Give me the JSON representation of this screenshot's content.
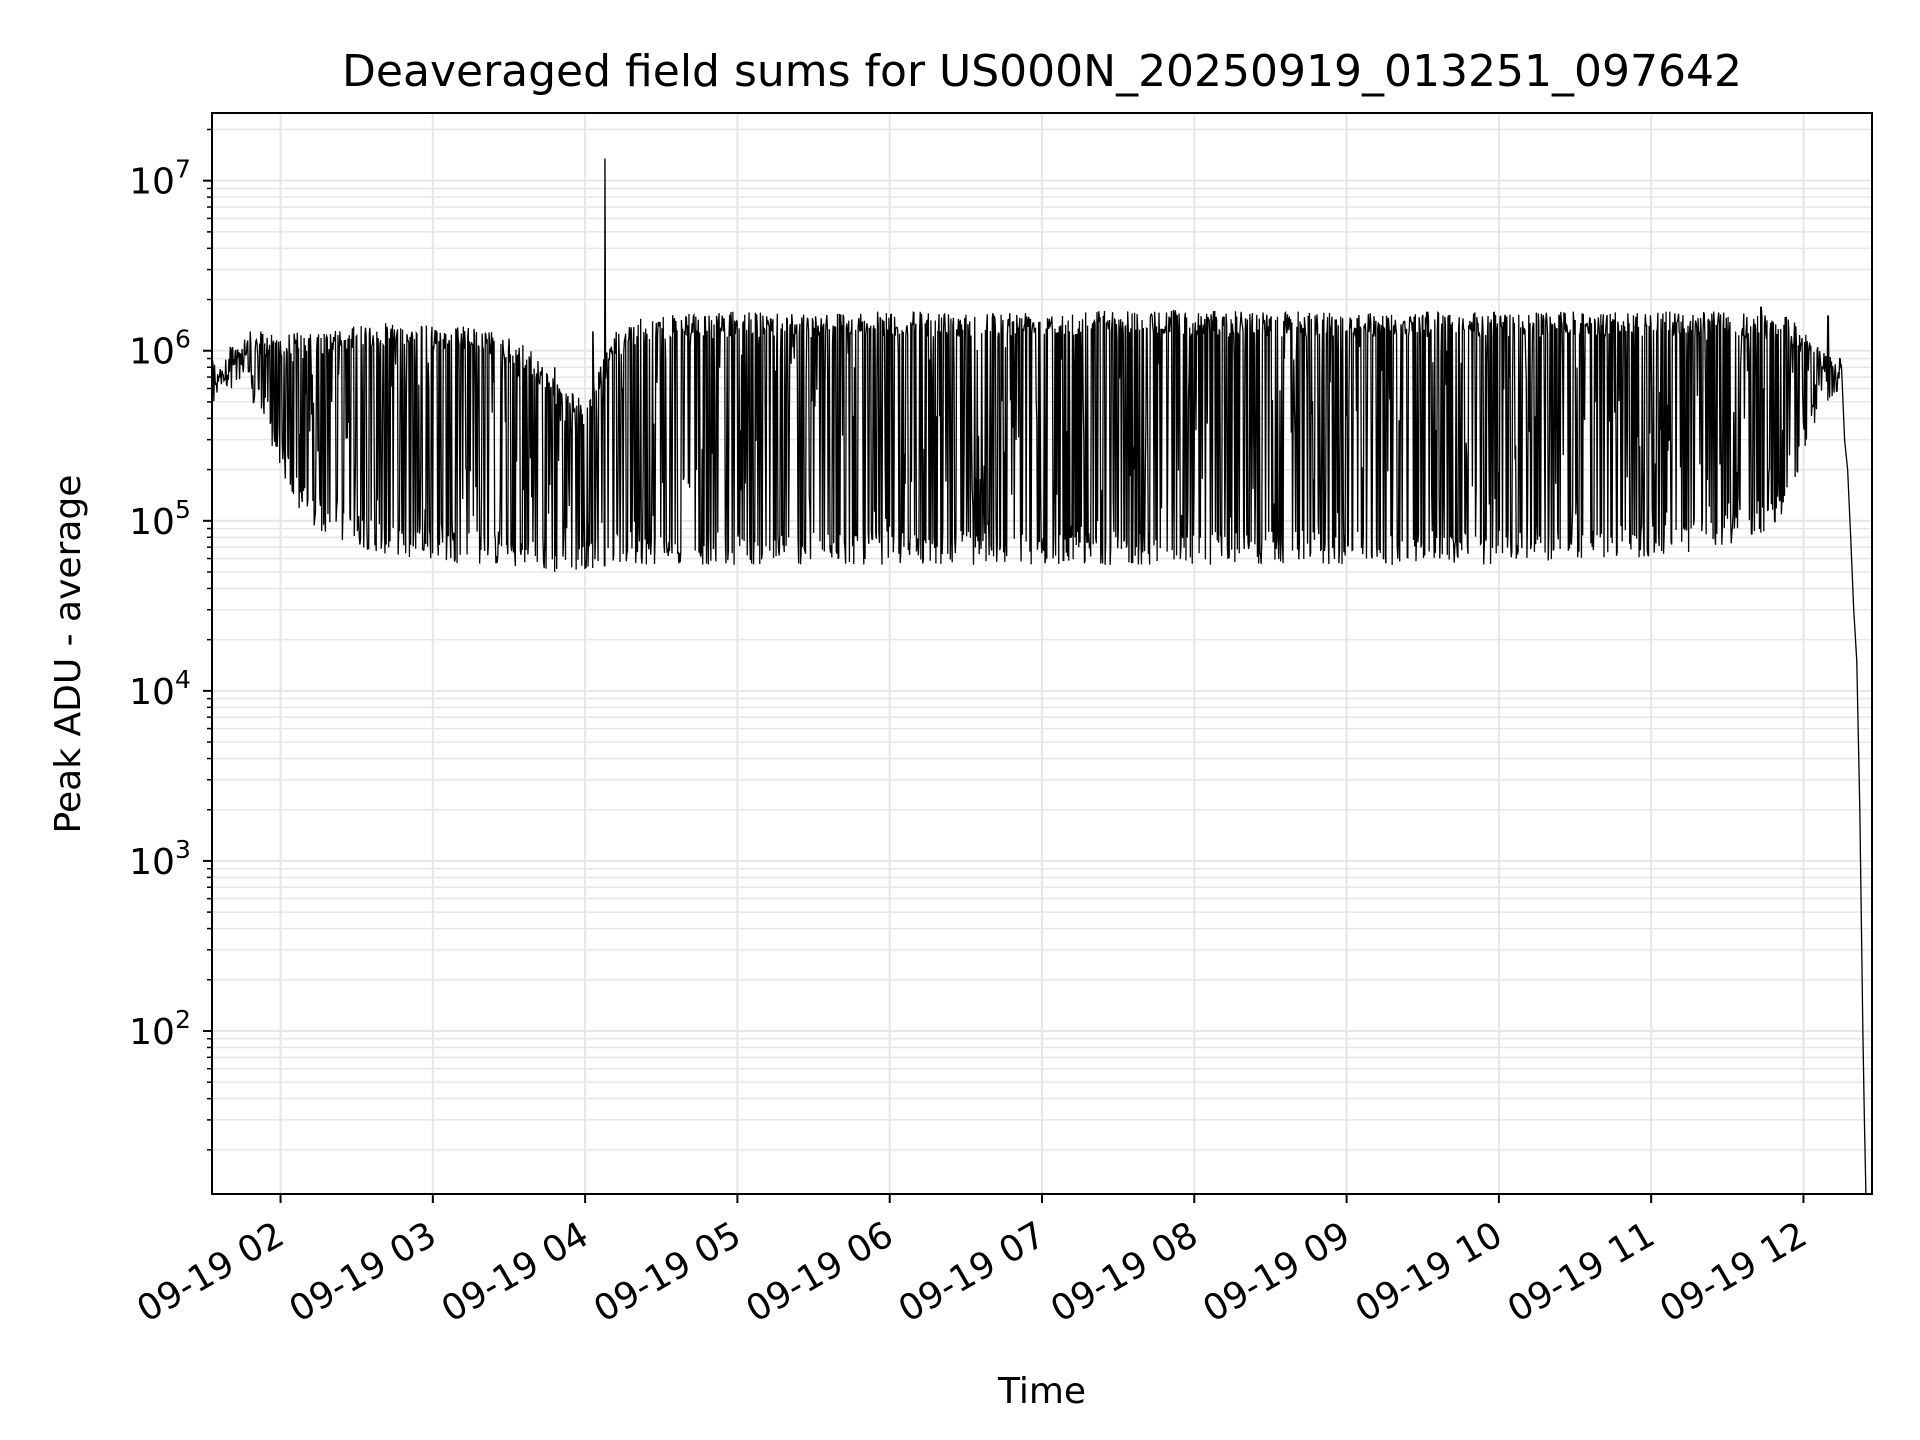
{
  "chart_data": {
    "type": "line",
    "title": "Deaveraged field sums for US000N_20250919_013251_097642",
    "xlabel": "Time",
    "ylabel": "Peak ADU - average",
    "yscale": "log",
    "grid": true,
    "ylim": [
      11,
      25000000
    ],
    "xlim_hours": [
      1.55,
      12.45
    ],
    "x_tick_labels": [
      "09-19 02",
      "09-19 03",
      "09-19 04",
      "09-19 05",
      "09-19 06",
      "09-19 07",
      "09-19 08",
      "09-19 09",
      "09-19 10",
      "09-19 11",
      "09-19 12"
    ],
    "x_tick_hours": [
      2,
      3,
      4,
      5,
      6,
      7,
      8,
      9,
      10,
      11,
      12
    ],
    "y_tick_labels": [
      {
        "base": "10",
        "exp": "2"
      },
      {
        "base": "10",
        "exp": "3"
      },
      {
        "base": "10",
        "exp": "4"
      },
      {
        "base": "10",
        "exp": "5"
      },
      {
        "base": "10",
        "exp": "6"
      },
      {
        "base": "10",
        "exp": "7"
      }
    ],
    "y_tick_values": [
      100,
      1000,
      10000,
      100000,
      1000000,
      10000000
    ],
    "series_color": "#000000",
    "grid_color": "#e6e6e6",
    "envelope": {
      "hours": [
        1.55,
        1.6,
        1.7,
        1.8,
        1.9,
        2.0,
        2.1,
        2.2,
        2.5,
        2.8,
        3.0,
        3.2,
        3.4,
        3.6,
        3.8,
        4.0,
        4.2,
        4.4,
        5.0,
        5.5,
        6.0,
        6.5,
        7.0,
        7.5,
        8.0,
        8.5,
        9.0,
        9.5,
        10.0,
        10.5,
        11.0,
        11.5,
        11.9,
        12.0,
        12.15,
        12.25
      ],
      "upper": [
        650000,
        800000,
        1200000,
        1300000,
        1300000,
        1300000,
        1300000,
        1250000,
        1400000,
        1500000,
        1400000,
        1400000,
        1300000,
        1100000,
        700000,
        500000,
        1300000,
        1600000,
        1700000,
        1700000,
        1700000,
        1700000,
        1750000,
        1750000,
        1750000,
        1700000,
        1700000,
        1700000,
        1700000,
        1700000,
        1700000,
        1700000,
        1600000,
        1300000,
        1000000,
        850000
      ],
      "lower": [
        550000,
        600000,
        600000,
        500000,
        350000,
        200000,
        120000,
        90000,
        70000,
        60000,
        58000,
        56000,
        55000,
        52000,
        50000,
        52000,
        55000,
        55000,
        55000,
        55000,
        55000,
        55000,
        55000,
        55000,
        55000,
        55000,
        55000,
        55000,
        55000,
        60000,
        60000,
        70000,
        100000,
        250000,
        500000,
        600000
      ]
    },
    "spikes": [
      {
        "hour": 4.13,
        "value": 13500000
      },
      {
        "hour": 3.8,
        "value": 800000
      },
      {
        "hour": 4.05,
        "value": 1300000
      },
      {
        "hour": 11.72,
        "value": 1800000
      },
      {
        "hour": 12.16,
        "value": 1600000
      }
    ],
    "dropoff": {
      "hours": [
        12.25,
        12.27,
        12.29,
        12.31,
        12.33,
        12.35,
        12.37,
        12.39,
        12.4,
        12.41,
        12.43
      ],
      "values": [
        800000,
        300000,
        200000,
        80000,
        30000,
        15000,
        2000,
        100,
        30,
        11,
        11
      ]
    }
  }
}
